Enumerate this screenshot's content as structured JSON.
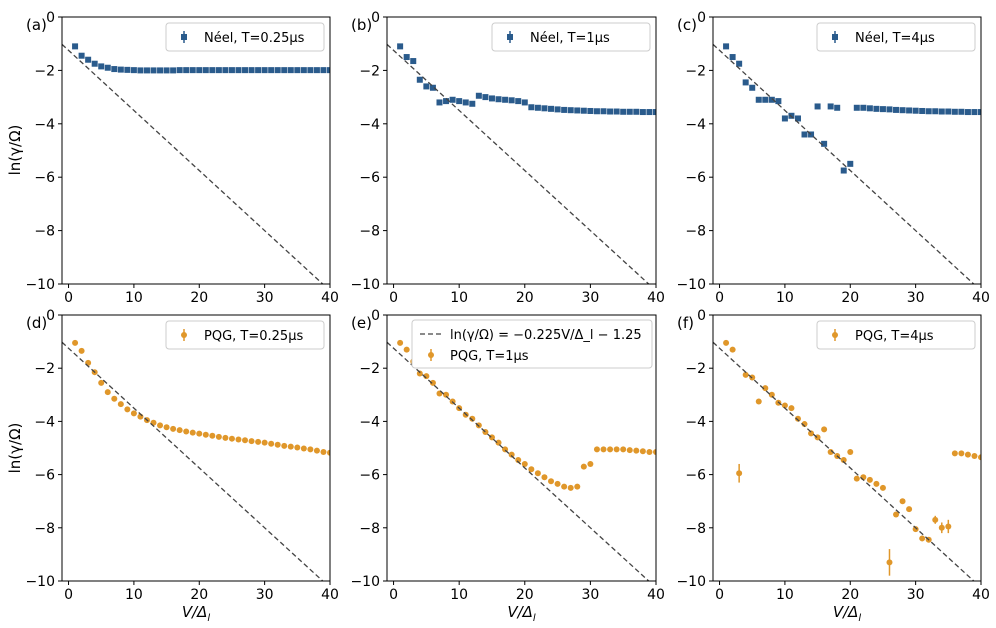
{
  "figure": {
    "ylabel": "ln(γ/Ω)",
    "xlabel": "V/Δ",
    "xlabel_sub": "l",
    "colors": {
      "neel": "#2a5b8c",
      "pqg": "#e0972a",
      "fit": "#444444"
    }
  },
  "chart_data": [
    {
      "panel": "(a)",
      "type": "scatter",
      "xlim": [
        -1,
        40
      ],
      "ylim": [
        -10,
        0
      ],
      "xticks": [
        "0",
        "10",
        "20",
        "30",
        "40"
      ],
      "yticks": [
        "0",
        "−2",
        "−4",
        "−6",
        "−8",
        "−10"
      ],
      "legend": [
        "Néel, T=0.25μs"
      ],
      "series": [
        {
          "name": "Néel, T=0.25μs",
          "marker": "square",
          "color": "#2a5b8c",
          "x": [
            1,
            2,
            3,
            4,
            5,
            6,
            7,
            8,
            9,
            10,
            11,
            12,
            13,
            14,
            15,
            16,
            17,
            18,
            19,
            20,
            21,
            22,
            23,
            24,
            25,
            26,
            27,
            28,
            29,
            30,
            31,
            32,
            33,
            34,
            35,
            36,
            37,
            38,
            39,
            40
          ],
          "y": [
            -1.1,
            -1.45,
            -1.6,
            -1.75,
            -1.85,
            -1.9,
            -1.95,
            -1.97,
            -1.98,
            -1.99,
            -2,
            -2,
            -2,
            -2,
            -2,
            -2,
            -1.99,
            -1.99,
            -1.99,
            -1.99,
            -1.99,
            -1.99,
            -1.99,
            -1.99,
            -1.99,
            -1.99,
            -1.99,
            -1.99,
            -1.99,
            -1.99,
            -1.99,
            -1.99,
            -1.99,
            -1.99,
            -1.99,
            -1.99,
            -1.99,
            -1.99,
            -1.99,
            -1.99
          ]
        },
        {
          "name": "fit",
          "type": "line",
          "dashed": true,
          "color": "#444444",
          "slope": -0.225,
          "intercept": -1.25
        }
      ]
    },
    {
      "panel": "(b)",
      "type": "scatter",
      "xlim": [
        -1,
        40
      ],
      "ylim": [
        -10,
        0
      ],
      "xticks": [
        "0",
        "10",
        "20",
        "30",
        "40"
      ],
      "yticks": [
        "0",
        "−2",
        "−4",
        "−6",
        "−8",
        "−10"
      ],
      "legend": [
        "Néel, T=1μs"
      ],
      "series": [
        {
          "name": "Néel, T=1μs",
          "marker": "square",
          "color": "#2a5b8c",
          "x": [
            1,
            2,
            3,
            4,
            5,
            6,
            7,
            8,
            9,
            10,
            11,
            12,
            13,
            14,
            15,
            16,
            17,
            18,
            19,
            20,
            21,
            22,
            23,
            24,
            25,
            26,
            27,
            28,
            29,
            30,
            31,
            32,
            33,
            34,
            35,
            36,
            37,
            38,
            39,
            40
          ],
          "y": [
            -1.1,
            -1.5,
            -1.65,
            -2.35,
            -2.6,
            -2.65,
            -3.2,
            -3.15,
            -3.1,
            -3.15,
            -3.2,
            -3.25,
            -2.95,
            -3,
            -3.05,
            -3.08,
            -3.1,
            -3.12,
            -3.15,
            -3.2,
            -3.38,
            -3.4,
            -3.42,
            -3.44,
            -3.46,
            -3.48,
            -3.49,
            -3.5,
            -3.51,
            -3.52,
            -3.53,
            -3.53,
            -3.54,
            -3.54,
            -3.55,
            -3.55,
            -3.55,
            -3.56,
            -3.56,
            -3.56
          ]
        },
        {
          "name": "fit",
          "type": "line",
          "dashed": true,
          "color": "#444444",
          "slope": -0.225,
          "intercept": -1.25
        }
      ]
    },
    {
      "panel": "(c)",
      "type": "scatter",
      "xlim": [
        -1,
        40
      ],
      "ylim": [
        -10,
        0
      ],
      "xticks": [
        "0",
        "10",
        "20",
        "30",
        "40"
      ],
      "yticks": [
        "0",
        "−2",
        "−4",
        "−6",
        "−8",
        "−10"
      ],
      "legend": [
        "Néel, T=4μs"
      ],
      "series": [
        {
          "name": "Néel, T=4μs",
          "marker": "square",
          "color": "#2a5b8c",
          "x": [
            1,
            2,
            3,
            4,
            5,
            6,
            7,
            8,
            9,
            10,
            11,
            12,
            13,
            14,
            15,
            16,
            17,
            18,
            19,
            20,
            21,
            22,
            23,
            24,
            25,
            26,
            27,
            28,
            29,
            30,
            31,
            32,
            33,
            34,
            35,
            36,
            37,
            38,
            39,
            40
          ],
          "y": [
            -1.1,
            -1.5,
            -1.75,
            -2.45,
            -2.65,
            -3.1,
            -3.1,
            -3.1,
            -3.15,
            -3.8,
            -3.7,
            -3.8,
            -4.4,
            -4.4,
            -3.35,
            -4.75,
            -3.35,
            -3.4,
            -5.75,
            -5.5,
            -3.4,
            -3.4,
            -3.42,
            -3.44,
            -3.45,
            -3.46,
            -3.48,
            -3.49,
            -3.5,
            -3.51,
            -3.52,
            -3.53,
            -3.53,
            -3.54,
            -3.54,
            -3.55,
            -3.55,
            -3.56,
            -3.56,
            -3.56
          ]
        },
        {
          "name": "fit",
          "type": "line",
          "dashed": true,
          "color": "#444444",
          "slope": -0.225,
          "intercept": -1.25
        }
      ]
    },
    {
      "panel": "(d)",
      "type": "scatter",
      "xlim": [
        -1,
        40
      ],
      "ylim": [
        -10,
        0
      ],
      "xticks": [
        "0",
        "10",
        "20",
        "30",
        "40"
      ],
      "yticks": [
        "0",
        "−2",
        "−4",
        "−6",
        "−8",
        "−10"
      ],
      "legend": [
        "PQG, T=0.25μs"
      ],
      "series": [
        {
          "name": "PQG, T=0.25μs",
          "marker": "circle",
          "color": "#e0972a",
          "x": [
            1,
            2,
            3,
            4,
            5,
            6,
            7,
            8,
            9,
            10,
            11,
            12,
            13,
            14,
            15,
            16,
            17,
            18,
            19,
            20,
            21,
            22,
            23,
            24,
            25,
            26,
            27,
            28,
            29,
            30,
            31,
            32,
            33,
            34,
            35,
            36,
            37,
            38,
            39,
            40
          ],
          "y": [
            -1.05,
            -1.35,
            -1.8,
            -2.15,
            -2.55,
            -2.9,
            -3.15,
            -3.35,
            -3.55,
            -3.7,
            -3.82,
            -3.95,
            -4.05,
            -4.15,
            -4.22,
            -4.28,
            -4.33,
            -4.38,
            -4.42,
            -4.46,
            -4.5,
            -4.54,
            -4.58,
            -4.62,
            -4.65,
            -4.68,
            -4.71,
            -4.74,
            -4.77,
            -4.8,
            -4.84,
            -4.88,
            -4.92,
            -4.95,
            -4.98,
            -5.02,
            -5.05,
            -5.1,
            -5.15,
            -5.18
          ]
        },
        {
          "name": "fit",
          "type": "line",
          "dashed": true,
          "color": "#444444",
          "slope": -0.225,
          "intercept": -1.25
        }
      ]
    },
    {
      "panel": "(e)",
      "type": "scatter",
      "xlim": [
        -1,
        40
      ],
      "ylim": [
        -10,
        0
      ],
      "xticks": [
        "0",
        "10",
        "20",
        "30",
        "40"
      ],
      "yticks": [
        "0",
        "−2",
        "−4",
        "−6",
        "−8",
        "−10"
      ],
      "legend": [
        "ln(γ/Ω) = −0.225V/Δ_l − 1.25",
        "PQG, T=1μs"
      ],
      "series": [
        {
          "name": "PQG, T=1μs",
          "marker": "circle",
          "color": "#e0972a",
          "x": [
            1,
            2,
            3,
            4,
            5,
            6,
            7,
            8,
            9,
            10,
            11,
            12,
            13,
            14,
            15,
            16,
            17,
            18,
            19,
            20,
            21,
            22,
            23,
            24,
            25,
            26,
            27,
            28,
            29,
            30,
            31,
            32,
            33,
            34,
            35,
            36,
            37,
            38,
            39,
            40
          ],
          "y": [
            -1.05,
            -1.3,
            -1.75,
            -2.2,
            -2.3,
            -2.55,
            -2.95,
            -3,
            -3.25,
            -3.5,
            -3.75,
            -3.9,
            -4.15,
            -4.4,
            -4.6,
            -4.8,
            -5.05,
            -5.25,
            -5.45,
            -5.6,
            -5.8,
            -5.95,
            -6.1,
            -6.25,
            -6.35,
            -6.45,
            -6.5,
            -6.45,
            -5.7,
            -5.6,
            -5.05,
            -5.05,
            -5.05,
            -5.05,
            -5.05,
            -5.08,
            -5.1,
            -5.12,
            -5.15,
            -5.15
          ]
        },
        {
          "name": "fit",
          "type": "line",
          "dashed": true,
          "color": "#444444",
          "slope": -0.225,
          "intercept": -1.25
        }
      ]
    },
    {
      "panel": "(f)",
      "type": "scatter",
      "xlim": [
        -1,
        40
      ],
      "ylim": [
        -10,
        0
      ],
      "xticks": [
        "0",
        "10",
        "20",
        "30",
        "40"
      ],
      "yticks": [
        "0",
        "−2",
        "−4",
        "−6",
        "−8",
        "−10"
      ],
      "legend": [
        "PQG, T=4μs"
      ],
      "series": [
        {
          "name": "PQG, T=4μs",
          "marker": "circle",
          "color": "#e0972a",
          "x": [
            1,
            2,
            3,
            4,
            5,
            6,
            7,
            8,
            9,
            10,
            11,
            12,
            13,
            14,
            15,
            16,
            17,
            18,
            19,
            20,
            21,
            22,
            23,
            24,
            25,
            26,
            27,
            28,
            29,
            30,
            31,
            32,
            33,
            34,
            35,
            36,
            37,
            38,
            39,
            40
          ],
          "y": [
            -1.05,
            -1.3,
            -5.95,
            -2.25,
            -2.35,
            -3.25,
            -2.75,
            -3,
            -3.3,
            -3.4,
            -3.5,
            -3.9,
            -4.1,
            -4.45,
            -4.6,
            -4.3,
            -5.15,
            -5.3,
            -5.45,
            -5.15,
            -6.15,
            -6.1,
            -6.2,
            -6.35,
            -6.5,
            -9.3,
            -7.5,
            -7,
            -7.3,
            -8.05,
            -8.4,
            -8.45,
            -7.7,
            -8,
            -7.95,
            -5.2,
            -5.2,
            -5.25,
            -5.3,
            -5.35
          ],
          "yerr": [
            0.1,
            0.1,
            0.35,
            0.1,
            0.1,
            0.1,
            0.1,
            0.1,
            0.1,
            0.1,
            0.1,
            0.1,
            0.1,
            0.1,
            0.1,
            0.1,
            0.1,
            0.1,
            0.1,
            0.1,
            0.1,
            0.1,
            0.1,
            0.1,
            0.1,
            0.5,
            0.1,
            0.1,
            0.1,
            0.1,
            0.1,
            0.1,
            0.15,
            0.2,
            0.25,
            0.1,
            0.1,
            0.1,
            0.1,
            0.1
          ]
        },
        {
          "name": "fit",
          "type": "line",
          "dashed": true,
          "color": "#444444",
          "slope": -0.225,
          "intercept": -1.25
        }
      ]
    }
  ]
}
